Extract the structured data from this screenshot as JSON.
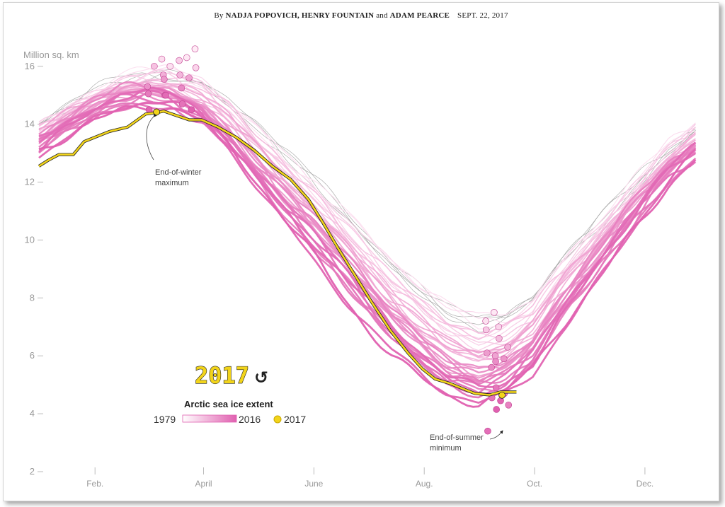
{
  "byline": {
    "prefix": "By",
    "authors_a": "NADJA POPOVICH, HENRY FOUNTAIN",
    "and": "and",
    "authors_b": "ADAM PEARCE",
    "date": "SEPT. 22, 2017"
  },
  "controls": {
    "year_display": "2017",
    "replay_icon": "replay-icon",
    "replay_glyph": "↺"
  },
  "legend": {
    "title": "Arctic sea ice extent",
    "start_label": "1979",
    "end_label": "2016",
    "current_label": "2017"
  },
  "annotations": {
    "max_line1": "End-of-winter",
    "max_line2": "maximum",
    "min_line1": "End-of-summer",
    "min_line2": "minimum"
  },
  "colors": {
    "current_year": "#f2d41a",
    "gradient_start": "#ffffff",
    "gradient_end": "#e060b0",
    "axis_text": "#999999",
    "old_years": "#888888"
  },
  "chart_data": {
    "type": "line",
    "title": "Arctic sea ice extent",
    "ylabel": "Million sq. km",
    "xlabel": "",
    "ylim": [
      2,
      16.5
    ],
    "xlim": [
      1,
      365
    ],
    "y_ticks": [
      2,
      4,
      6,
      8,
      10,
      12,
      14,
      16
    ],
    "y_tick_labels": [
      "2",
      "4",
      "6",
      "8",
      "10",
      "12",
      "14",
      "16"
    ],
    "x_ticks": [
      {
        "label": "Feb.",
        "day": 32
      },
      {
        "label": "April",
        "day": 92
      },
      {
        "label": "June",
        "day": 153
      },
      {
        "label": "Aug.",
        "day": 214
      },
      {
        "label": "Oct.",
        "day": 275
      },
      {
        "label": "Dec.",
        "day": 336
      }
    ],
    "series_range": [
      "1979",
      "2016"
    ],
    "reference_profile": {
      "days": [
        1,
        15,
        32,
        46,
        60,
        74,
        91,
        106,
        121,
        136,
        152,
        166,
        182,
        196,
        213,
        227,
        244,
        258,
        274,
        288,
        305,
        319,
        335,
        350,
        365
      ],
      "extent": [
        13.9,
        14.45,
        15.05,
        15.45,
        15.65,
        15.65,
        15.3,
        14.6,
        13.7,
        12.8,
        11.9,
        11.0,
        9.9,
        8.95,
        8.05,
        7.35,
        6.9,
        7.05,
        7.75,
        8.95,
        10.1,
        11.1,
        12.2,
        13.15,
        13.8
      ]
    },
    "current_year_series": {
      "name": "2017",
      "x": [
        1,
        6,
        12,
        20,
        26,
        32,
        40,
        50,
        60,
        66,
        70,
        77,
        84,
        91,
        100,
        110,
        120,
        130,
        140,
        150,
        158,
        166,
        175,
        185,
        195,
        205,
        213,
        220,
        228,
        236,
        242,
        250,
        256,
        265
      ],
      "y": [
        12.55,
        12.75,
        12.95,
        12.95,
        13.4,
        13.55,
        13.75,
        13.9,
        14.35,
        14.4,
        14.45,
        14.3,
        14.15,
        14.15,
        13.9,
        13.55,
        13.1,
        12.55,
        12.1,
        11.4,
        10.6,
        9.75,
        8.85,
        7.85,
        6.9,
        6.1,
        5.55,
        5.2,
        5.05,
        4.85,
        4.7,
        4.65,
        4.75,
        4.75
      ],
      "max_point": {
        "x": 66,
        "y": 14.42
      },
      "min_point": {
        "x": 257,
        "y": 4.64
      }
    },
    "year_maxima": [
      {
        "year": 1979,
        "y": 16.6
      },
      {
        "year": 1980,
        "y": 16.3
      },
      {
        "year": 1982,
        "y": 16.0
      },
      {
        "year": 1983,
        "y": 16.25
      },
      {
        "year": 1985,
        "y": 15.95
      },
      {
        "year": 1987,
        "y": 16.2
      },
      {
        "year": 1990,
        "y": 16.0
      },
      {
        "year": 1993,
        "y": 15.7
      },
      {
        "year": 1995,
        "y": 15.7
      },
      {
        "year": 1998,
        "y": 15.6
      },
      {
        "year": 2001,
        "y": 15.55
      },
      {
        "year": 2003,
        "y": 15.3
      },
      {
        "year": 2005,
        "y": 15.25
      },
      {
        "year": 2007,
        "y": 15.0
      },
      {
        "year": 2009,
        "y": 15.05
      },
      {
        "year": 2011,
        "y": 14.7
      },
      {
        "year": 2013,
        "y": 15.0
      },
      {
        "year": 2015,
        "y": 14.5
      },
      {
        "year": 2016,
        "y": 14.5
      }
    ],
    "year_minima": [
      {
        "year": 1980,
        "y": 7.5
      },
      {
        "year": 1982,
        "y": 7.2
      },
      {
        "year": 1985,
        "y": 7.0
      },
      {
        "year": 1988,
        "y": 6.9
      },
      {
        "year": 1991,
        "y": 6.6
      },
      {
        "year": 1995,
        "y": 6.3
      },
      {
        "year": 1998,
        "y": 6.0
      },
      {
        "year": 2000,
        "y": 6.1
      },
      {
        "year": 2002,
        "y": 5.9
      },
      {
        "year": 2004,
        "y": 5.8
      },
      {
        "year": 2005,
        "y": 5.6
      },
      {
        "year": 2007,
        "y": 4.3
      },
      {
        "year": 2008,
        "y": 4.7
      },
      {
        "year": 2010,
        "y": 4.9
      },
      {
        "year": 2011,
        "y": 4.55
      },
      {
        "year": 2012,
        "y": 3.4
      },
      {
        "year": 2015,
        "y": 4.45
      },
      {
        "year": 2016,
        "y": 4.15
      }
    ],
    "annotations": [
      "End-of-winter maximum",
      "End-of-summer minimum"
    ],
    "grid": false,
    "legend_position": "bottom-left"
  }
}
